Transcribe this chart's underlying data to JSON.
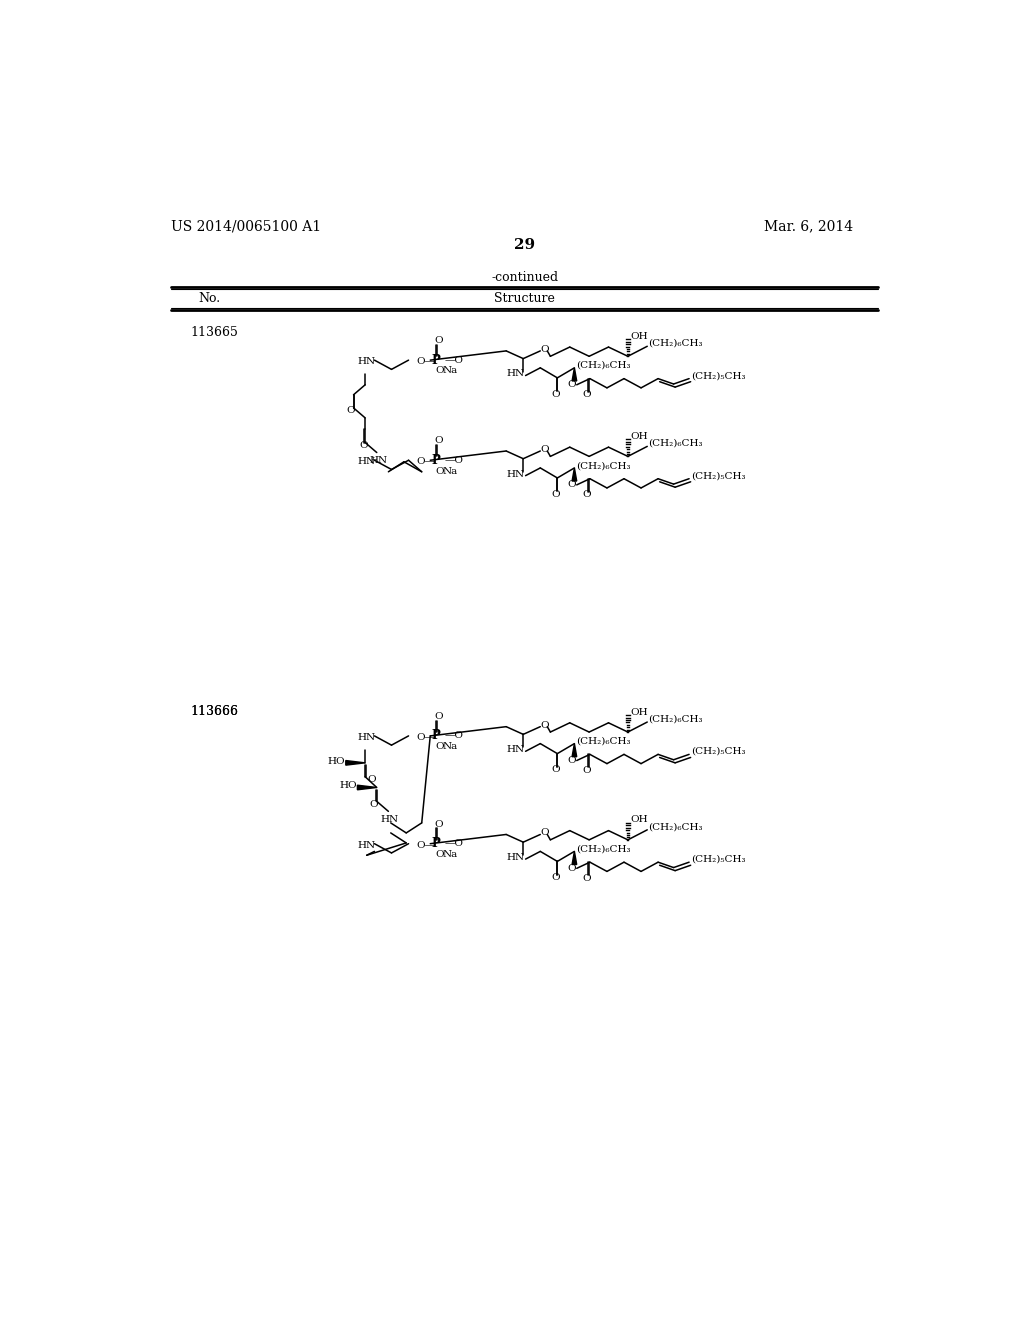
{
  "page_number": "29",
  "patent_number": "US 2014/0065100 A1",
  "date": "Mar. 6, 2014",
  "continued_text": "-continued",
  "col_no": "No.",
  "col_structure": "Structure",
  "compound1_no": "113665",
  "compound2_no": "113666",
  "bg_color": "#ffffff",
  "text_color": "#000000"
}
